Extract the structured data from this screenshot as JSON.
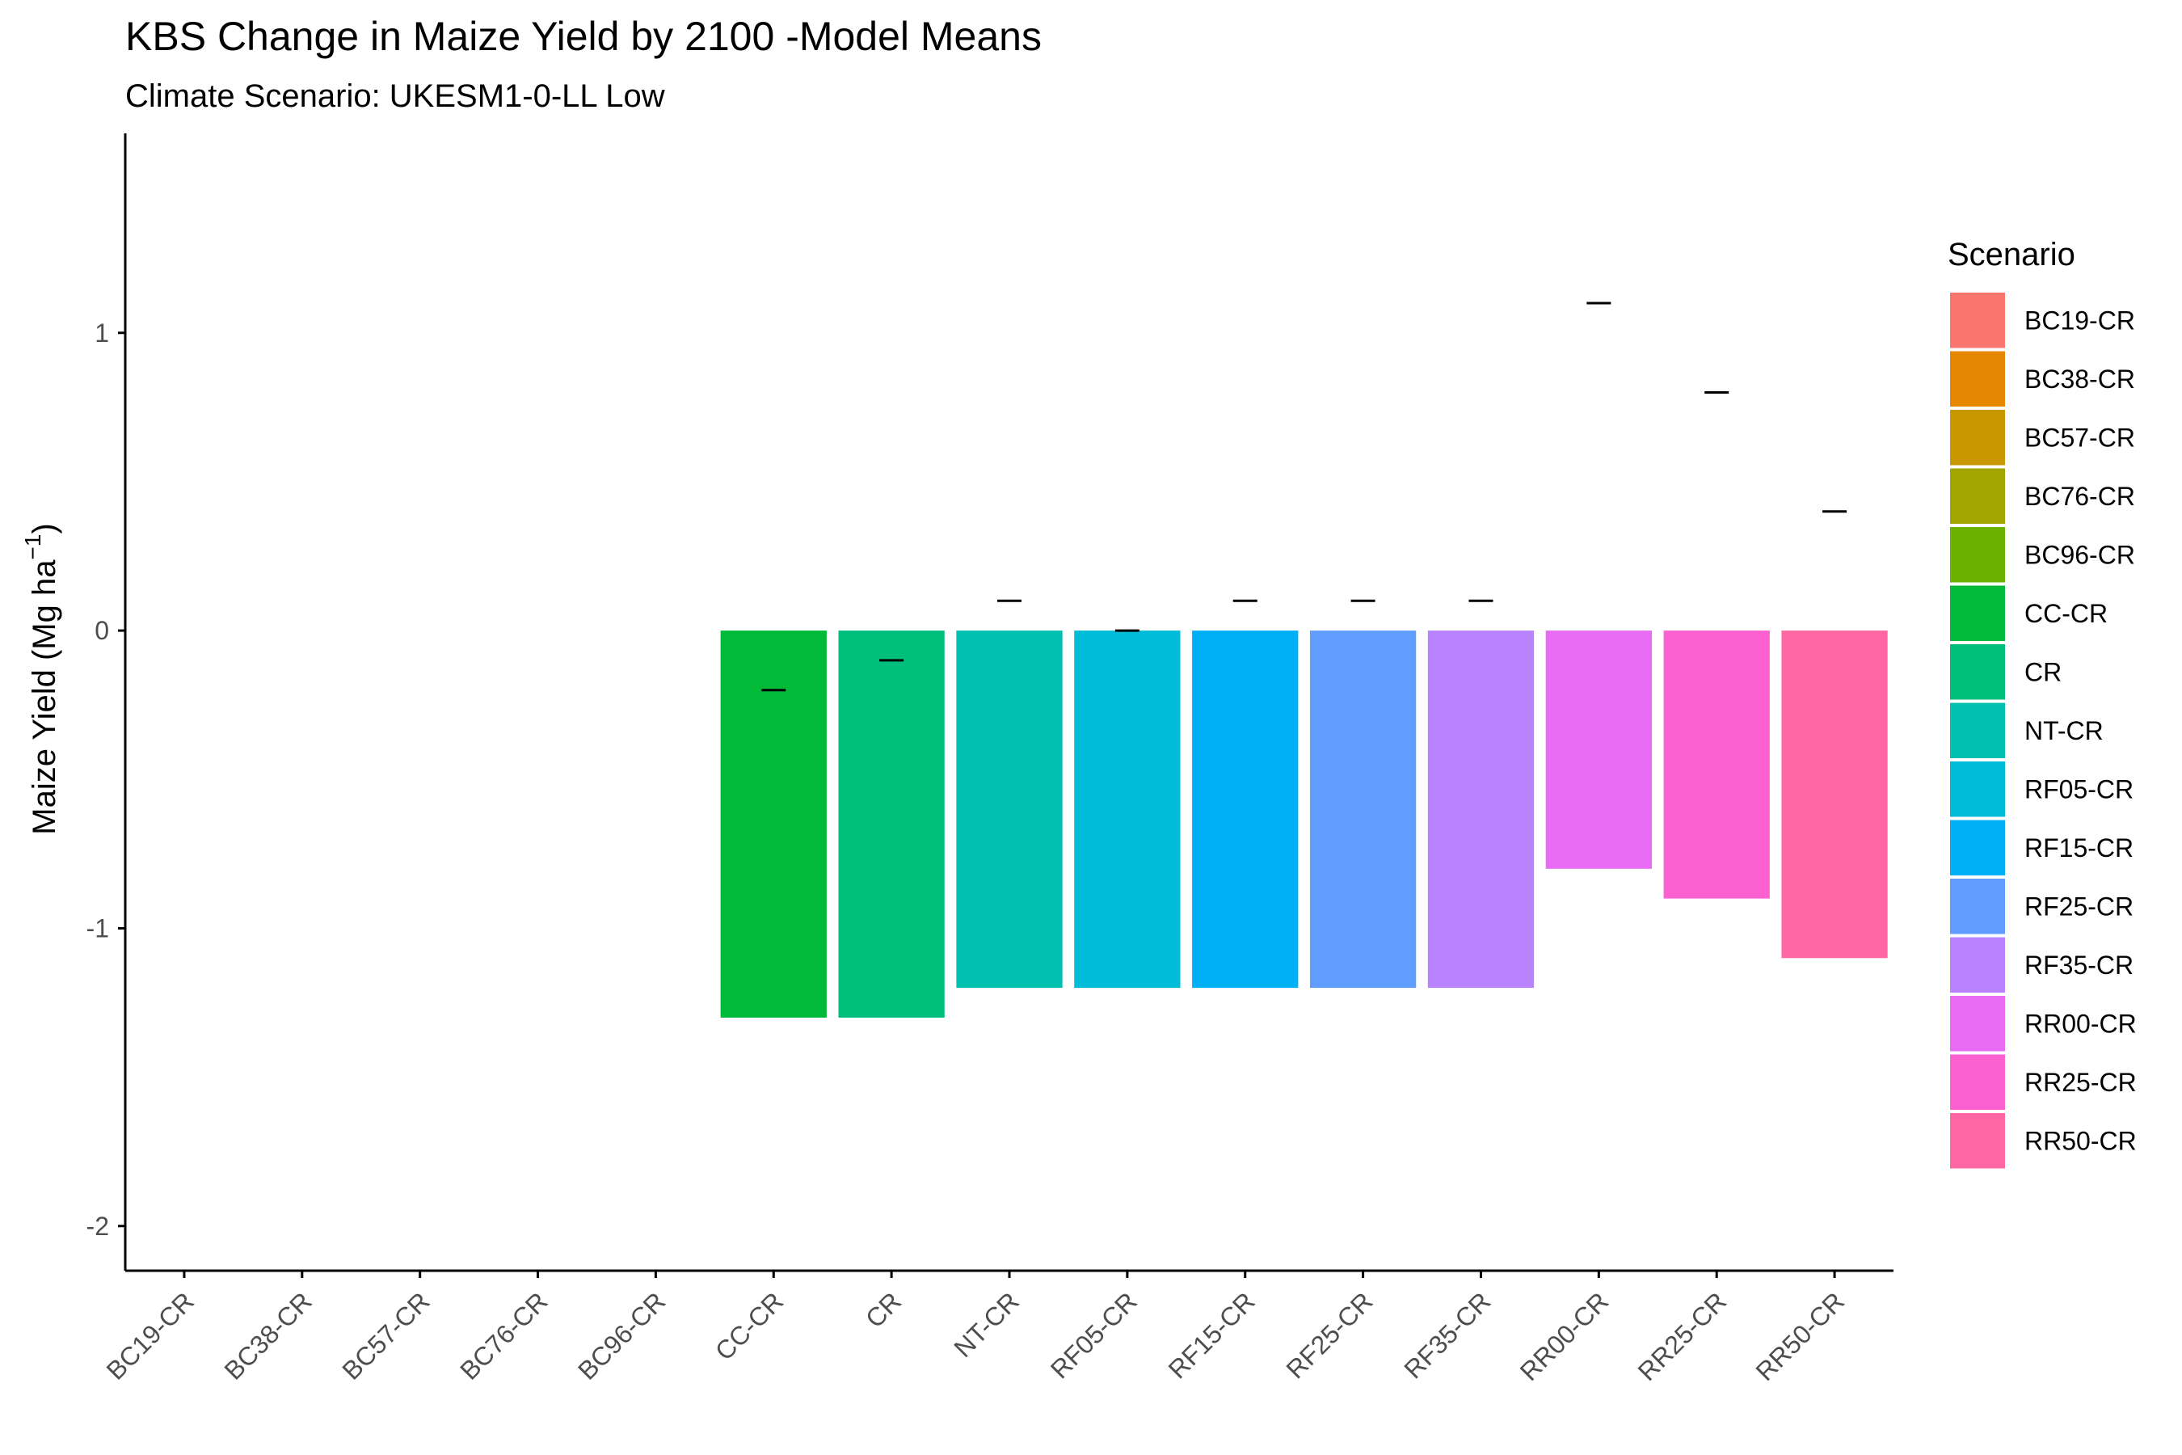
{
  "chart_data": {
    "type": "bar",
    "title": "KBS Change in Maize Yield by  2100 -Model Means",
    "subtitle": "Climate Scenario: UKESM1-0-LL Low",
    "xlabel": "",
    "ylabel_main": "Maize Yield (Mg ha",
    "ylabel_sup": "−1",
    "ylabel_end": ")",
    "ylim": [
      -2.15,
      1.67
    ],
    "yticks": [
      -2,
      -1,
      0,
      1
    ],
    "ytick_labels": [
      "-2",
      "-1",
      "0",
      "1"
    ],
    "grid": false,
    "legend": {
      "title": "Scenario",
      "position": "right"
    },
    "categories": [
      "BC19-CR",
      "BC38-CR",
      "BC57-CR",
      "BC76-CR",
      "BC96-CR",
      "CC-CR",
      "CR",
      "NT-CR",
      "RF05-CR",
      "RF15-CR",
      "RF25-CR",
      "RF35-CR",
      "RR00-CR",
      "RR25-CR",
      "RR50-CR"
    ],
    "colors": [
      "#F8766D",
      "#E58700",
      "#C99800",
      "#A3A500",
      "#6BB100",
      "#00BA38",
      "#00BF7D",
      "#00C0AF",
      "#00BCD8",
      "#00B0F6",
      "#619CFF",
      "#B983FF",
      "#E76BF3",
      "#FD61D1",
      "#FF67A4"
    ],
    "values": [
      null,
      null,
      null,
      null,
      null,
      -1.3,
      -1.3,
      -1.2,
      -1.2,
      -1.2,
      -1.2,
      -1.2,
      -0.8,
      -0.9,
      -1.1
    ],
    "markers": [
      null,
      null,
      null,
      null,
      null,
      -0.2,
      -0.1,
      0.1,
      0.0,
      0.1,
      0.1,
      0.1,
      1.1,
      0.8,
      0.4
    ]
  }
}
